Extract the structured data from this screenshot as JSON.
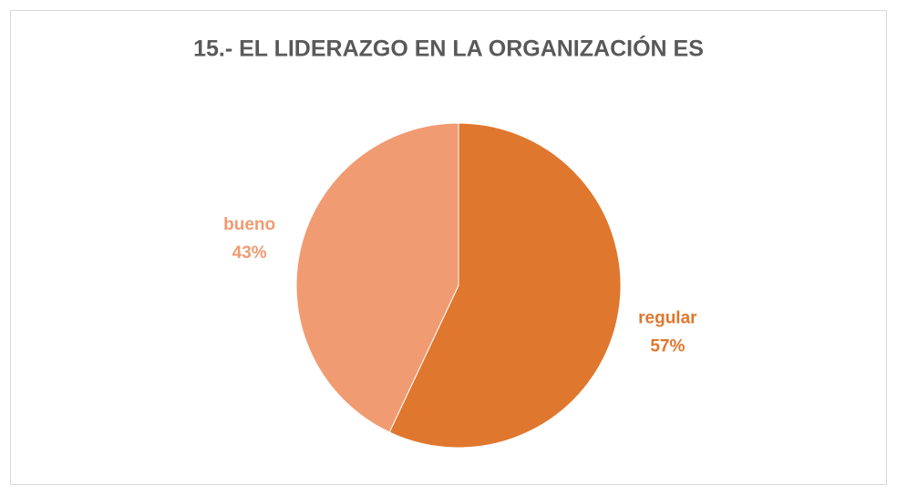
{
  "chart_data": {
    "type": "pie",
    "title": "15.- EL LIDERAZGO EN LA ORGANIZACIÓN ES",
    "categories": [
      "regular",
      "bueno"
    ],
    "values": [
      57,
      43
    ],
    "value_labels": [
      "57%",
      "43%"
    ],
    "colors": [
      "#e0772e",
      "#f09b72"
    ]
  }
}
